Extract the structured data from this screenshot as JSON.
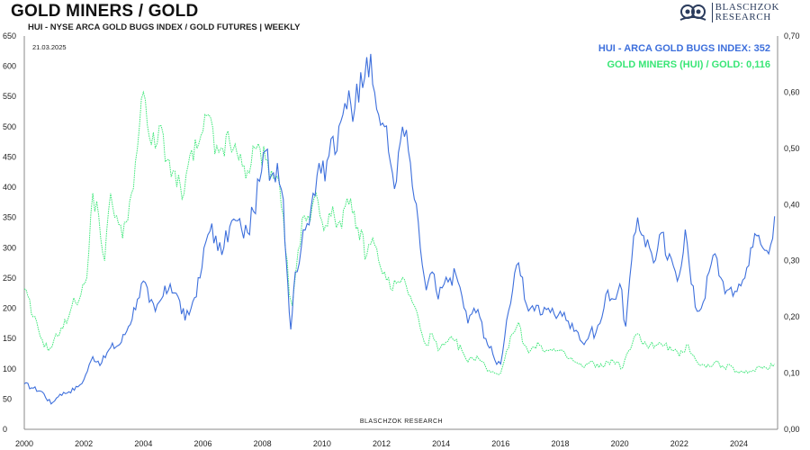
{
  "header": {
    "title": "GOLD MINERS / GOLD",
    "subtitle": "HUI - NYSE ARCA GOLD BUGS INDEX / GOLD FUTURES | WEEKLY",
    "date": "21.03.2025",
    "brand_line1": "BLASCHZOK",
    "brand_line2": "RESEARCH",
    "watermark": "BLASCHZOK   RESEARCH"
  },
  "colors": {
    "hui": "#3d6fdc",
    "ratio": "#39e676",
    "axis": "#888888",
    "brand": "#2a3b5c"
  },
  "chart_data": {
    "type": "line",
    "x_ticks": [
      "2000",
      "2002",
      "2004",
      "2006",
      "2008",
      "2010",
      "2012",
      "2014",
      "2016",
      "2018",
      "2020",
      "2022",
      "2024"
    ],
    "x_range": [
      2000,
      2025.3
    ],
    "y_left_range": [
      0,
      650
    ],
    "y_left_ticks": [
      "0",
      "50",
      "100",
      "150",
      "200",
      "250",
      "300",
      "350",
      "400",
      "450",
      "500",
      "550",
      "600",
      "650"
    ],
    "y_right_range": [
      0,
      0.7
    ],
    "y_right_ticks": [
      "0,00",
      "0,10",
      "0,20",
      "0,30",
      "0,40",
      "0,50",
      "0,60",
      "0,70"
    ],
    "legend_position": "top-right",
    "series": [
      {
        "name": "HUI - ARCA GOLD BUGS INDEX: 352",
        "axis": "left",
        "style": "solid",
        "points": [
          [
            2000.0,
            75
          ],
          [
            2000.3,
            68
          ],
          [
            2000.6,
            62
          ],
          [
            2000.9,
            42
          ],
          [
            2001.2,
            58
          ],
          [
            2001.5,
            62
          ],
          [
            2001.8,
            70
          ],
          [
            2002.0,
            82
          ],
          [
            2002.3,
            120
          ],
          [
            2002.6,
            110
          ],
          [
            2002.9,
            135
          ],
          [
            2003.2,
            140
          ],
          [
            2003.5,
            170
          ],
          [
            2003.8,
            215
          ],
          [
            2004.0,
            245
          ],
          [
            2004.2,
            210
          ],
          [
            2004.4,
            195
          ],
          [
            2004.6,
            215
          ],
          [
            2004.9,
            240
          ],
          [
            2005.1,
            225
          ],
          [
            2005.4,
            180
          ],
          [
            2005.6,
            200
          ],
          [
            2005.9,
            250
          ],
          [
            2006.1,
            310
          ],
          [
            2006.3,
            340
          ],
          [
            2006.5,
            295
          ],
          [
            2006.7,
            300
          ],
          [
            2006.9,
            335
          ],
          [
            2007.1,
            345
          ],
          [
            2007.3,
            330
          ],
          [
            2007.5,
            325
          ],
          [
            2007.7,
            360
          ],
          [
            2007.9,
            410
          ],
          [
            2008.1,
            460
          ],
          [
            2008.3,
            420
          ],
          [
            2008.5,
            440
          ],
          [
            2008.7,
            380
          ],
          [
            2008.85,
            240
          ],
          [
            2008.95,
            165
          ],
          [
            2009.1,
            260
          ],
          [
            2009.3,
            300
          ],
          [
            2009.5,
            340
          ],
          [
            2009.7,
            390
          ],
          [
            2009.9,
            440
          ],
          [
            2010.1,
            410
          ],
          [
            2010.3,
            480
          ],
          [
            2010.5,
            460
          ],
          [
            2010.7,
            520
          ],
          [
            2010.9,
            560
          ],
          [
            2011.1,
            530
          ],
          [
            2011.3,
            590
          ],
          [
            2011.5,
            615
          ],
          [
            2011.7,
            570
          ],
          [
            2011.9,
            520
          ],
          [
            2012.1,
            500
          ],
          [
            2012.3,
            440
          ],
          [
            2012.5,
            410
          ],
          [
            2012.7,
            500
          ],
          [
            2012.9,
            460
          ],
          [
            2013.1,
            380
          ],
          [
            2013.3,
            300
          ],
          [
            2013.5,
            230
          ],
          [
            2013.7,
            260
          ],
          [
            2013.9,
            215
          ],
          [
            2014.1,
            240
          ],
          [
            2014.3,
            250
          ],
          [
            2014.5,
            255
          ],
          [
            2014.7,
            220
          ],
          [
            2014.9,
            175
          ],
          [
            2015.1,
            200
          ],
          [
            2015.3,
            185
          ],
          [
            2015.5,
            150
          ],
          [
            2015.8,
            115
          ],
          [
            2016.0,
            108
          ],
          [
            2016.2,
            180
          ],
          [
            2016.4,
            230
          ],
          [
            2016.6,
            275
          ],
          [
            2016.8,
            215
          ],
          [
            2017.0,
            200
          ],
          [
            2017.2,
            205
          ],
          [
            2017.4,
            190
          ],
          [
            2017.6,
            200
          ],
          [
            2017.8,
            190
          ],
          [
            2018.0,
            195
          ],
          [
            2018.2,
            180
          ],
          [
            2018.4,
            175
          ],
          [
            2018.6,
            160
          ],
          [
            2018.8,
            140
          ],
          [
            2019.0,
            160
          ],
          [
            2019.2,
            160
          ],
          [
            2019.4,
            185
          ],
          [
            2019.6,
            230
          ],
          [
            2019.8,
            215
          ],
          [
            2020.0,
            240
          ],
          [
            2020.2,
            170
          ],
          [
            2020.4,
            280
          ],
          [
            2020.6,
            350
          ],
          [
            2020.8,
            320
          ],
          [
            2021.0,
            300
          ],
          [
            2021.2,
            280
          ],
          [
            2021.4,
            325
          ],
          [
            2021.6,
            280
          ],
          [
            2021.8,
            270
          ],
          [
            2022.0,
            255
          ],
          [
            2022.2,
            330
          ],
          [
            2022.4,
            240
          ],
          [
            2022.6,
            195
          ],
          [
            2022.8,
            210
          ],
          [
            2023.0,
            260
          ],
          [
            2023.2,
            290
          ],
          [
            2023.4,
            250
          ],
          [
            2023.6,
            230
          ],
          [
            2023.8,
            220
          ],
          [
            2024.0,
            240
          ],
          [
            2024.2,
            250
          ],
          [
            2024.4,
            300
          ],
          [
            2024.6,
            320
          ],
          [
            2024.8,
            300
          ],
          [
            2025.0,
            290
          ],
          [
            2025.2,
            352
          ]
        ]
      },
      {
        "name": "GOLD MINERS (HUI) / GOLD: 0,116",
        "axis": "right",
        "style": "dotted",
        "points": [
          [
            2000.0,
            0.25
          ],
          [
            2000.3,
            0.2
          ],
          [
            2000.6,
            0.16
          ],
          [
            2000.8,
            0.14
          ],
          [
            2001.0,
            0.16
          ],
          [
            2001.3,
            0.18
          ],
          [
            2001.6,
            0.22
          ],
          [
            2001.9,
            0.24
          ],
          [
            2002.1,
            0.27
          ],
          [
            2002.3,
            0.42
          ],
          [
            2002.5,
            0.38
          ],
          [
            2002.7,
            0.3
          ],
          [
            2002.9,
            0.42
          ],
          [
            2003.1,
            0.38
          ],
          [
            2003.3,
            0.34
          ],
          [
            2003.6,
            0.42
          ],
          [
            2003.8,
            0.5
          ],
          [
            2004.0,
            0.6
          ],
          [
            2004.2,
            0.52
          ],
          [
            2004.4,
            0.5
          ],
          [
            2004.6,
            0.54
          ],
          [
            2004.8,
            0.48
          ],
          [
            2005.0,
            0.46
          ],
          [
            2005.3,
            0.41
          ],
          [
            2005.5,
            0.47
          ],
          [
            2005.8,
            0.5
          ],
          [
            2006.0,
            0.53
          ],
          [
            2006.2,
            0.56
          ],
          [
            2006.4,
            0.49
          ],
          [
            2006.6,
            0.5
          ],
          [
            2006.9,
            0.51
          ],
          [
            2007.2,
            0.48
          ],
          [
            2007.5,
            0.46
          ],
          [
            2007.8,
            0.5
          ],
          [
            2008.1,
            0.48
          ],
          [
            2008.3,
            0.46
          ],
          [
            2008.5,
            0.45
          ],
          [
            2008.7,
            0.38
          ],
          [
            2008.9,
            0.24
          ],
          [
            2009.0,
            0.22
          ],
          [
            2009.2,
            0.32
          ],
          [
            2009.4,
            0.38
          ],
          [
            2009.6,
            0.37
          ],
          [
            2009.8,
            0.42
          ],
          [
            2010.0,
            0.37
          ],
          [
            2010.3,
            0.38
          ],
          [
            2010.6,
            0.37
          ],
          [
            2010.9,
            0.4
          ],
          [
            2011.2,
            0.36
          ],
          [
            2011.5,
            0.31
          ],
          [
            2011.7,
            0.34
          ],
          [
            2011.9,
            0.3
          ],
          [
            2012.1,
            0.28
          ],
          [
            2012.3,
            0.25
          ],
          [
            2012.5,
            0.26
          ],
          [
            2012.7,
            0.27
          ],
          [
            2012.9,
            0.24
          ],
          [
            2013.1,
            0.22
          ],
          [
            2013.3,
            0.18
          ],
          [
            2013.5,
            0.15
          ],
          [
            2013.7,
            0.17
          ],
          [
            2013.9,
            0.14
          ],
          [
            2014.1,
            0.15
          ],
          [
            2014.4,
            0.16
          ],
          [
            2014.7,
            0.14
          ],
          [
            2014.9,
            0.12
          ],
          [
            2015.2,
            0.13
          ],
          [
            2015.5,
            0.11
          ],
          [
            2015.8,
            0.1
          ],
          [
            2016.0,
            0.1
          ],
          [
            2016.2,
            0.14
          ],
          [
            2016.4,
            0.17
          ],
          [
            2016.6,
            0.19
          ],
          [
            2016.8,
            0.15
          ],
          [
            2017.0,
            0.14
          ],
          [
            2017.3,
            0.15
          ],
          [
            2017.6,
            0.14
          ],
          [
            2017.9,
            0.14
          ],
          [
            2018.2,
            0.13
          ],
          [
            2018.5,
            0.12
          ],
          [
            2018.8,
            0.11
          ],
          [
            2019.0,
            0.12
          ],
          [
            2019.3,
            0.11
          ],
          [
            2019.6,
            0.12
          ],
          [
            2019.9,
            0.12
          ],
          [
            2020.1,
            0.11
          ],
          [
            2020.3,
            0.14
          ],
          [
            2020.6,
            0.17
          ],
          [
            2020.9,
            0.15
          ],
          [
            2021.2,
            0.15
          ],
          [
            2021.5,
            0.15
          ],
          [
            2021.8,
            0.14
          ],
          [
            2022.0,
            0.13
          ],
          [
            2022.3,
            0.15
          ],
          [
            2022.6,
            0.12
          ],
          [
            2022.9,
            0.11
          ],
          [
            2023.2,
            0.12
          ],
          [
            2023.5,
            0.11
          ],
          [
            2023.8,
            0.11
          ],
          [
            2024.0,
            0.1
          ],
          [
            2024.3,
            0.1
          ],
          [
            2024.6,
            0.11
          ],
          [
            2024.9,
            0.11
          ],
          [
            2025.2,
            0.116
          ]
        ]
      }
    ]
  }
}
